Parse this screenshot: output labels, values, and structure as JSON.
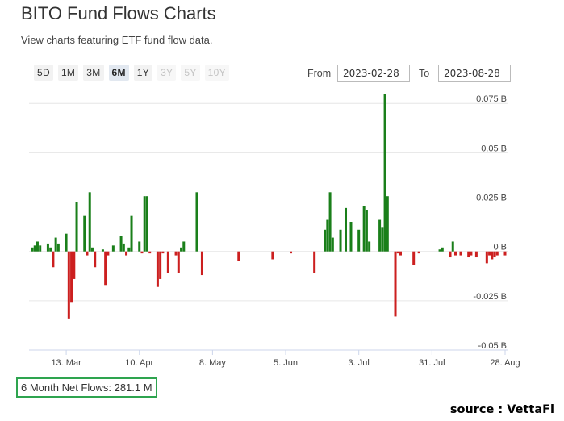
{
  "header": {
    "title": "BITO Fund Flows Charts",
    "subtitle": "View charts featuring ETF fund flow data."
  },
  "range_buttons": [
    {
      "label": "5D",
      "state": "enabled"
    },
    {
      "label": "1M",
      "state": "enabled"
    },
    {
      "label": "3M",
      "state": "enabled"
    },
    {
      "label": "6M",
      "state": "active"
    },
    {
      "label": "1Y",
      "state": "enabled"
    },
    {
      "label": "3Y",
      "state": "disabled"
    },
    {
      "label": "5Y",
      "state": "disabled"
    },
    {
      "label": "10Y",
      "state": "disabled"
    }
  ],
  "date_range": {
    "from_label": "From",
    "from_value": "2023-02-28",
    "to_label": "To",
    "to_value": "2023-08-28"
  },
  "summary": {
    "net_flows": "6 Month Net Flows: 281.1 M"
  },
  "source_note": "source : VettaFi",
  "colors": {
    "inflow": "#1a7f1a",
    "outflow": "#cc1f1f",
    "grid": "#e6e6e6",
    "box": "#2ea44f"
  },
  "chart_data": {
    "type": "bar",
    "title": "",
    "xlabel": "",
    "ylabel": "",
    "ylim": [
      -0.05,
      0.08
    ],
    "y_unit": "B",
    "y_axis_position": "right",
    "grid": true,
    "x_range": [
      "2023-02-28",
      "2023-08-28"
    ],
    "yticks": [
      {
        "value": 0.075,
        "label": "0.075 B"
      },
      {
        "value": 0.05,
        "label": "0.05 B"
      },
      {
        "value": 0.025,
        "label": "0.025 B"
      },
      {
        "value": 0,
        "label": "0 B"
      },
      {
        "value": -0.025,
        "label": "-0.025 B"
      },
      {
        "value": -0.05,
        "label": "-0.05 B"
      }
    ],
    "xticks": [
      {
        "date": "2023-03-13",
        "label": "13. Mar"
      },
      {
        "date": "2023-04-10",
        "label": "10. Apr"
      },
      {
        "date": "2023-05-08",
        "label": "8. May"
      },
      {
        "date": "2023-06-05",
        "label": "5. Jun"
      },
      {
        "date": "2023-07-03",
        "label": "3. Jul"
      },
      {
        "date": "2023-07-31",
        "label": "31. Jul"
      },
      {
        "date": "2023-08-28",
        "label": "28. Aug"
      }
    ],
    "series": [
      {
        "points": [
          {
            "date": "2023-02-28",
            "value": 0.002
          },
          {
            "date": "2023-03-01",
            "value": 0.003
          },
          {
            "date": "2023-03-02",
            "value": 0.005
          },
          {
            "date": "2023-03-03",
            "value": 0.003
          },
          {
            "date": "2023-03-06",
            "value": 0.004
          },
          {
            "date": "2023-03-07",
            "value": 0.002
          },
          {
            "date": "2023-03-08",
            "value": -0.008
          },
          {
            "date": "2023-03-09",
            "value": 0.007
          },
          {
            "date": "2023-03-10",
            "value": 0.004
          },
          {
            "date": "2023-03-13",
            "value": 0.009
          },
          {
            "date": "2023-03-14",
            "value": -0.034
          },
          {
            "date": "2023-03-15",
            "value": -0.026
          },
          {
            "date": "2023-03-16",
            "value": -0.014
          },
          {
            "date": "2023-03-17",
            "value": 0.025
          },
          {
            "date": "2023-03-20",
            "value": 0.018
          },
          {
            "date": "2023-03-21",
            "value": -0.002
          },
          {
            "date": "2023-03-22",
            "value": 0.03
          },
          {
            "date": "2023-03-23",
            "value": 0.002
          },
          {
            "date": "2023-03-24",
            "value": -0.008
          },
          {
            "date": "2023-03-27",
            "value": 0.001
          },
          {
            "date": "2023-03-28",
            "value": -0.017
          },
          {
            "date": "2023-03-29",
            "value": -0.002
          },
          {
            "date": "2023-03-31",
            "value": 0.003
          },
          {
            "date": "2023-04-03",
            "value": 0.008
          },
          {
            "date": "2023-04-04",
            "value": 0.004
          },
          {
            "date": "2023-04-05",
            "value": -0.002
          },
          {
            "date": "2023-04-06",
            "value": 0.002
          },
          {
            "date": "2023-04-07",
            "value": 0.018
          },
          {
            "date": "2023-04-10",
            "value": 0.005
          },
          {
            "date": "2023-04-11",
            "value": -0.001
          },
          {
            "date": "2023-04-12",
            "value": 0.028
          },
          {
            "date": "2023-04-13",
            "value": 0.028
          },
          {
            "date": "2023-04-14",
            "value": -0.001
          },
          {
            "date": "2023-04-17",
            "value": -0.018
          },
          {
            "date": "2023-04-18",
            "value": -0.014
          },
          {
            "date": "2023-04-19",
            "value": -0.001
          },
          {
            "date": "2023-04-21",
            "value": -0.011
          },
          {
            "date": "2023-04-24",
            "value": -0.002
          },
          {
            "date": "2023-04-25",
            "value": -0.011
          },
          {
            "date": "2023-04-26",
            "value": 0.002
          },
          {
            "date": "2023-04-27",
            "value": 0.005
          },
          {
            "date": "2023-05-02",
            "value": 0.03
          },
          {
            "date": "2023-05-04",
            "value": -0.012
          },
          {
            "date": "2023-05-18",
            "value": -0.005
          },
          {
            "date": "2023-05-31",
            "value": -0.004
          },
          {
            "date": "2023-06-07",
            "value": -0.001
          },
          {
            "date": "2023-06-16",
            "value": -0.011
          },
          {
            "date": "2023-06-20",
            "value": 0.011
          },
          {
            "date": "2023-06-21",
            "value": 0.016
          },
          {
            "date": "2023-06-22",
            "value": 0.03
          },
          {
            "date": "2023-06-23",
            "value": 0.007
          },
          {
            "date": "2023-06-26",
            "value": 0.011
          },
          {
            "date": "2023-06-28",
            "value": 0.022
          },
          {
            "date": "2023-06-30",
            "value": 0.015
          },
          {
            "date": "2023-07-03",
            "value": 0.011
          },
          {
            "date": "2023-07-05",
            "value": 0.023
          },
          {
            "date": "2023-07-06",
            "value": 0.021
          },
          {
            "date": "2023-07-07",
            "value": 0.005
          },
          {
            "date": "2023-07-11",
            "value": 0.016
          },
          {
            "date": "2023-07-12",
            "value": 0.012
          },
          {
            "date": "2023-07-13",
            "value": 0.08
          },
          {
            "date": "2023-07-14",
            "value": 0.028
          },
          {
            "date": "2023-07-17",
            "value": -0.033
          },
          {
            "date": "2023-07-18",
            "value": -0.001
          },
          {
            "date": "2023-07-19",
            "value": -0.002
          },
          {
            "date": "2023-07-24",
            "value": -0.007
          },
          {
            "date": "2023-07-26",
            "value": -0.001
          },
          {
            "date": "2023-08-03",
            "value": 0.001
          },
          {
            "date": "2023-08-04",
            "value": 0.002
          },
          {
            "date": "2023-08-07",
            "value": -0.003
          },
          {
            "date": "2023-08-08",
            "value": 0.005
          },
          {
            "date": "2023-08-09",
            "value": -0.002
          },
          {
            "date": "2023-08-11",
            "value": -0.002
          },
          {
            "date": "2023-08-14",
            "value": -0.003
          },
          {
            "date": "2023-08-15",
            "value": -0.002
          },
          {
            "date": "2023-08-17",
            "value": -0.003
          },
          {
            "date": "2023-08-21",
            "value": -0.006
          },
          {
            "date": "2023-08-22",
            "value": -0.002
          },
          {
            "date": "2023-08-23",
            "value": -0.004
          },
          {
            "date": "2023-08-24",
            "value": -0.003
          },
          {
            "date": "2023-08-25",
            "value": -0.002
          },
          {
            "date": "2023-08-28",
            "value": -0.002
          }
        ]
      }
    ]
  }
}
